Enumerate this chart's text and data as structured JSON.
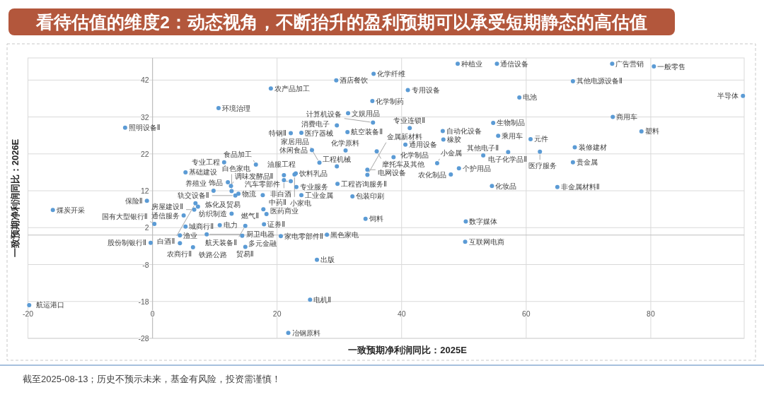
{
  "chart_data": {
    "type": "scatter",
    "title": "看待估值的维度2：动态视角，不断抬升的盈利预期可以承受短期静态的高估值",
    "xlabel": "一致预期净利润同比：2025E",
    "ylabel": "一致预期净利润同比：2026E",
    "xlim": [
      -20,
      95
    ],
    "ylim": [
      -28,
      48
    ],
    "xticks": [
      -20,
      0,
      20,
      40,
      60,
      80
    ],
    "yticks": [
      -28,
      -18,
      -8,
      2,
      12,
      22,
      32,
      42
    ],
    "grid": true,
    "marker": "circle",
    "series": [
      {
        "color": "#5b9bd5",
        "x": [
          35.5,
          49.0,
          55.3,
          73.8,
          80.5,
          29.5,
          19.0,
          67.5,
          41.0,
          58.9,
          94.8,
          35.3,
          10.6,
          54.7,
          73.9,
          78.5,
          31.4,
          35.4,
          -4.4,
          22.2,
          23.9,
          29.6,
          31.3,
          41.3,
          46.6,
          55.5,
          60.7,
          67.8,
          46.7,
          40.6,
          25.6,
          31.0,
          36.0,
          38.7,
          57.1,
          53.1,
          62.2,
          67.5,
          45.7,
          49.2,
          47.9,
          54.5,
          65.0,
          50.3,
          50.2,
          11.5,
          16.6,
          5.3,
          12.1,
          9.8,
          12.7,
          12.6,
          13.8,
          13.3,
          6.9,
          7.3,
          6.7,
          5.0,
          -0.9,
          -16.0,
          0.3,
          5.3,
          10.8,
          14.9,
          17.9,
          8.7,
          14.4,
          12.7,
          17.8,
          18.3,
          17.7,
          23.9,
          32.1,
          29.7,
          34.2,
          28.0,
          4.4,
          20.6,
          -0.3,
          4.4,
          6.5,
          14.9,
          26.4,
          25.3,
          21.8,
          -19.8,
          21.1,
          23.0,
          22.8,
          21.1,
          22.2,
          23.1,
          26.8,
          29.6,
          34.5,
          34.5
        ],
        "values": [
          43.7,
          46.4,
          46.4,
          46.4,
          45.7,
          41.9,
          39.7,
          41.7,
          39.3,
          37.3,
          37.7,
          36.3,
          34.4,
          30.4,
          32.0,
          28.1,
          33.0,
          30.5,
          29.1,
          27.6,
          27.7,
          29.7,
          27.9,
          29.0,
          28.2,
          26.9,
          26.0,
          23.8,
          25.9,
          24.5,
          23.0,
          22.9,
          22.7,
          21.1,
          22.5,
          21.6,
          22.6,
          19.7,
          19.5,
          18.1,
          16.4,
          13.3,
          13.0,
          3.7,
          -1.8,
          19.7,
          19.1,
          17.0,
          14.3,
          12.0,
          11.9,
          13.3,
          11.2,
          10.7,
          8.6,
          7.7,
          6.9,
          5.3,
          9.3,
          6.8,
          3.0,
          2.3,
          2.7,
          2.5,
          2.9,
          0.2,
          -0.2,
          5.8,
          7.0,
          5.7,
          10.8,
          10.8,
          10.5,
          13.9,
          4.4,
          0.1,
          -0.1,
          -0.3,
          -2.1,
          -2.2,
          -3.3,
          -3.2,
          -6.7,
          -17.5,
          -26.5,
          -19.0,
          16.2,
          16.7,
          16.4,
          14.9,
          14.6,
          13.0,
          19.6,
          18.6,
          17.7,
          16.3
        ]
      }
    ],
    "annotations": [
      {
        "text": "化学纤维",
        "x": 35.5,
        "y": 43.7
      },
      {
        "text": "种植业",
        "x": 49.0,
        "y": 46.4
      },
      {
        "text": "通信设备",
        "x": 55.3,
        "y": 46.4
      },
      {
        "text": "广告营销",
        "x": 73.8,
        "y": 46.4
      },
      {
        "text": "一般零售",
        "x": 80.5,
        "y": 45.7
      },
      {
        "text": "酒店餐饮",
        "x": 29.5,
        "y": 41.9
      },
      {
        "text": "农产品加工",
        "x": 19.0,
        "y": 39.7
      },
      {
        "text": "其他电源设备Ⅱ",
        "x": 67.5,
        "y": 41.7
      },
      {
        "text": "专用设备",
        "x": 41.0,
        "y": 39.3
      },
      {
        "text": "电池",
        "x": 58.9,
        "y": 37.3
      },
      {
        "text": "半导体",
        "x": 94.8,
        "y": 37.7
      },
      {
        "text": "化学制药",
        "x": 35.3,
        "y": 36.3
      },
      {
        "text": "环境治理",
        "x": 10.6,
        "y": 34.4
      },
      {
        "text": "生物制品",
        "x": 54.7,
        "y": 30.4
      },
      {
        "text": "商用车",
        "x": 73.9,
        "y": 32.0
      },
      {
        "text": "塑料",
        "x": 78.5,
        "y": 28.1
      },
      {
        "text": "文娱用品",
        "x": 31.4,
        "y": 33.0
      },
      {
        "text": "计算机设备",
        "x": 35.4,
        "y": 30.5
      },
      {
        "text": "照明设备Ⅱ",
        "x": -4.4,
        "y": 29.1
      },
      {
        "text": "特钢Ⅱ",
        "x": 22.2,
        "y": 27.6
      },
      {
        "text": "医疗器械",
        "x": 23.9,
        "y": 27.7
      },
      {
        "text": "消费电子",
        "x": 29.6,
        "y": 29.7
      },
      {
        "text": "航空装备Ⅱ",
        "x": 31.3,
        "y": 27.9
      },
      {
        "text": "专业连锁Ⅱ",
        "x": 41.3,
        "y": 29.0
      },
      {
        "text": "自动化设备",
        "x": 46.6,
        "y": 28.2
      },
      {
        "text": "乘用车",
        "x": 55.5,
        "y": 26.9
      },
      {
        "text": "元件",
        "x": 60.7,
        "y": 26.0
      },
      {
        "text": "装修建材",
        "x": 67.8,
        "y": 23.8
      },
      {
        "text": "橡胶",
        "x": 46.7,
        "y": 25.9
      },
      {
        "text": "通用设备",
        "x": 40.6,
        "y": 24.5
      },
      {
        "text": "休闲食品",
        "x": 25.6,
        "y": 23.0
      },
      {
        "text": "化学原料",
        "x": 31.0,
        "y": 22.9
      },
      {
        "text": "摩托车及其他",
        "x": 36.0,
        "y": 22.7
      },
      {
        "text": "化学制品",
        "x": 38.7,
        "y": 21.1
      },
      {
        "text": "电子化学品Ⅱ",
        "x": 57.1,
        "y": 22.5
      },
      {
        "text": "其他电子Ⅱ",
        "x": 53.1,
        "y": 21.6
      },
      {
        "text": "医疗服务",
        "x": 62.2,
        "y": 22.6
      },
      {
        "text": "贵金属",
        "x": 67.5,
        "y": 19.7
      },
      {
        "text": "小金属",
        "x": 45.7,
        "y": 19.5
      },
      {
        "text": "个护用品",
        "x": 49.2,
        "y": 18.1
      },
      {
        "text": "农化制品",
        "x": 47.9,
        "y": 16.4
      },
      {
        "text": "化妆品",
        "x": 54.5,
        "y": 13.3
      },
      {
        "text": "非金属材料Ⅱ",
        "x": 65.0,
        "y": 13.0
      },
      {
        "text": "数字媒体",
        "x": 50.3,
        "y": 3.7
      },
      {
        "text": "互联网电商",
        "x": 50.2,
        "y": -1.8
      },
      {
        "text": "专业工程",
        "x": 11.5,
        "y": 19.7
      },
      {
        "text": "食品加工",
        "x": 16.6,
        "y": 19.1
      },
      {
        "text": "基础建设",
        "x": 5.3,
        "y": 17.0
      },
      {
        "text": "饰品",
        "x": 12.1,
        "y": 14.3
      },
      {
        "text": "养殖业",
        "x": 9.8,
        "y": 12.0
      },
      {
        "text": "白色家电",
        "x": 12.7,
        "y": 11.9
      },
      {
        "text": "调味发酵品Ⅱ",
        "x": 12.6,
        "y": 13.3
      },
      {
        "text": "物流",
        "x": 13.8,
        "y": 11.2
      },
      {
        "text": "轨交设备Ⅱ",
        "x": 13.3,
        "y": 10.7
      },
      {
        "text": "白酒Ⅱ",
        "x": 6.9,
        "y": 8.6
      },
      {
        "text": "炼化及贸易",
        "x": 7.3,
        "y": 7.7
      },
      {
        "text": "房屋建设Ⅱ",
        "x": 6.7,
        "y": 6.9
      },
      {
        "text": "通信服务",
        "x": 5.0,
        "y": 5.3
      },
      {
        "text": "保险Ⅱ",
        "x": -0.9,
        "y": 9.3
      },
      {
        "text": "煤炭开采",
        "x": -16.0,
        "y": 6.8
      },
      {
        "text": "国有大型银行Ⅱ",
        "x": 0.3,
        "y": 3.0
      },
      {
        "text": "城商行Ⅱ",
        "x": 5.3,
        "y": 2.3
      },
      {
        "text": "电力",
        "x": 10.8,
        "y": 2.7
      },
      {
        "text": "航天装备Ⅱ",
        "x": 14.9,
        "y": 2.5
      },
      {
        "text": "证券Ⅱ",
        "x": 17.9,
        "y": 2.9
      },
      {
        "text": "厨卫电器",
        "x": 8.7,
        "y": 0.2
      },
      {
        "text": "多元金融",
        "x": 14.4,
        "y": -0.2
      },
      {
        "text": "纺织制造",
        "x": 12.7,
        "y": 5.8
      },
      {
        "text": "医药商业",
        "x": 17.8,
        "y": 7.0
      },
      {
        "text": "燃气Ⅱ",
        "x": 18.3,
        "y": 5.7
      },
      {
        "text": "中药Ⅱ",
        "x": 17.7,
        "y": 10.8
      },
      {
        "text": "工业金属",
        "x": 23.9,
        "y": 10.8
      },
      {
        "text": "包装印刷",
        "x": 32.1,
        "y": 10.5
      },
      {
        "text": "工程咨询服务Ⅱ",
        "x": 29.7,
        "y": 13.9
      },
      {
        "text": "饲料",
        "x": 34.2,
        "y": 4.4
      },
      {
        "text": "黑色家电",
        "x": 28.0,
        "y": 0.1
      },
      {
        "text": "渔业",
        "x": 4.4,
        "y": -0.1
      },
      {
        "text": "家电零部件Ⅱ",
        "x": 20.6,
        "y": -0.3
      },
      {
        "text": "股份制银行Ⅱ",
        "x": -0.3,
        "y": -2.1
      },
      {
        "text": "农商行Ⅱ",
        "x": 4.4,
        "y": -2.2
      },
      {
        "text": "铁路公路",
        "x": 6.5,
        "y": -3.3
      },
      {
        "text": "贸易Ⅱ",
        "x": 14.9,
        "y": -3.2
      },
      {
        "text": "出版",
        "x": 26.4,
        "y": -6.7
      },
      {
        "text": "电机Ⅱ",
        "x": 25.3,
        "y": -17.5
      },
      {
        "text": "冶钢原料",
        "x": 21.8,
        "y": -26.5
      },
      {
        "text": "航运港口",
        "x": -19.8,
        "y": -19.0
      },
      {
        "text": "油服工程",
        "x": 21.1,
        "y": 16.2
      },
      {
        "text": "饮料乳品",
        "x": 23.0,
        "y": 16.7
      },
      {
        "text": "小家电",
        "x": 22.8,
        "y": 16.4
      },
      {
        "text": "非白酒",
        "x": 21.1,
        "y": 14.9
      },
      {
        "text": "汽车零部件",
        "x": 22.2,
        "y": 14.6
      },
      {
        "text": "专业服务",
        "x": 23.1,
        "y": 13.0
      },
      {
        "text": "家居用品",
        "x": 26.8,
        "y": 19.6
      },
      {
        "text": "工程机械",
        "x": 29.6,
        "y": 18.6
      },
      {
        "text": "电网设备",
        "x": 34.5,
        "y": 17.7
      },
      {
        "text": "金属新材料",
        "x": 34.5,
        "y": 16.3
      },
      "截至2025-08-13；历史不预示未来，基金有风险，投资需谨慎！"
    ]
  }
}
